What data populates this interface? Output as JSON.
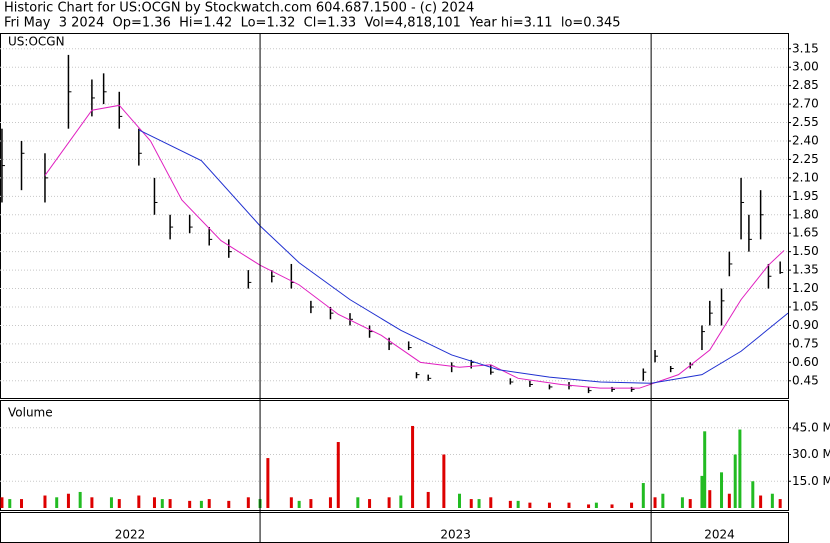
{
  "chart_data": [
    {
      "type": "ohlc",
      "title": "Historic Chart for US:OCGN by Stockwatch.com 604.687.1500 - (c) 2024",
      "subtitle": "Fri May  3 2024  Op=1.36  Hi=1.42  Lo=1.32  Cl=1.33  Vol=4,818,101  Year hi=3.11  lo=0.345",
      "label": "US:OCGN",
      "color": "#000000",
      "xlim": [
        2022.335,
        2024.35
      ],
      "ylim": [
        0.31,
        3.27
      ],
      "yticks": [
        0.45,
        {
          "value": 0.6,
          "label": "0.60"
        },
        0.75,
        {
          "value": 0.9,
          "label": "0.90"
        },
        1.05,
        {
          "value": 1.2,
          "label": "1.20"
        },
        1.35,
        {
          "value": 1.5,
          "label": "1.50"
        },
        1.65,
        {
          "value": 1.8,
          "label": "1.80"
        },
        1.95,
        {
          "value": 2.1,
          "label": "2.10"
        },
        2.25,
        {
          "value": 2.4,
          "label": "2.40"
        },
        2.55,
        {
          "value": 2.7,
          "label": "2.70"
        },
        2.85,
        {
          "value": 3.0,
          "label": "3.00"
        },
        3.15
      ],
      "grid": true,
      "x": [
        2022.34,
        2022.39,
        2022.45,
        2022.51,
        2022.57,
        2022.6,
        2022.64,
        2022.69,
        2022.73,
        2022.77,
        2022.82,
        2022.87,
        2022.92,
        2022.97,
        2023.03,
        2023.08,
        2023.13,
        2023.18,
        2023.23,
        2023.28,
        2023.33,
        2023.38,
        2023.4,
        2023.43,
        2023.49,
        2023.54,
        2023.59,
        2023.64,
        2023.69,
        2023.74,
        2023.79,
        2023.84,
        2023.9,
        2023.95,
        2023.98,
        2024.01,
        2024.05,
        2024.1,
        2024.13,
        2024.15,
        2024.18,
        2024.2,
        2024.23,
        2024.25,
        2024.28,
        2024.3,
        2024.33
      ],
      "high": [
        2.5,
        2.4,
        2.3,
        3.1,
        2.9,
        2.95,
        2.8,
        2.5,
        2.1,
        1.8,
        1.8,
        1.7,
        1.6,
        1.35,
        1.35,
        1.4,
        1.1,
        1.05,
        1.0,
        0.9,
        0.8,
        0.77,
        0.52,
        0.5,
        0.6,
        0.62,
        0.58,
        0.47,
        0.45,
        0.42,
        0.44,
        0.4,
        0.4,
        0.4,
        0.55,
        0.7,
        0.57,
        0.6,
        0.9,
        1.1,
        1.2,
        1.5,
        2.1,
        1.8,
        2.0,
        1.4,
        1.42
      ],
      "low": [
        1.9,
        2.0,
        1.9,
        2.5,
        2.6,
        2.7,
        2.5,
        2.2,
        1.8,
        1.6,
        1.65,
        1.55,
        1.45,
        1.2,
        1.25,
        1.2,
        1.0,
        0.95,
        0.9,
        0.8,
        0.7,
        0.7,
        0.47,
        0.45,
        0.52,
        0.55,
        0.5,
        0.42,
        0.4,
        0.38,
        0.38,
        0.35,
        0.36,
        0.36,
        0.45,
        0.6,
        0.52,
        0.55,
        0.7,
        0.9,
        0.9,
        1.3,
        1.6,
        1.5,
        1.6,
        1.2,
        1.32
      ],
      "close": [
        2.2,
        2.3,
        2.1,
        2.8,
        2.75,
        2.8,
        2.6,
        2.3,
        1.9,
        1.7,
        1.7,
        1.6,
        1.5,
        1.25,
        1.3,
        1.25,
        1.05,
        1.0,
        0.95,
        0.85,
        0.75,
        0.72,
        0.5,
        0.47,
        0.57,
        0.6,
        0.52,
        0.44,
        0.42,
        0.4,
        0.41,
        0.37,
        0.38,
        0.38,
        0.52,
        0.65,
        0.55,
        0.58,
        0.85,
        1.0,
        1.1,
        1.4,
        1.9,
        1.6,
        1.8,
        1.3,
        1.33
      ],
      "overlays": [
        {
          "color": "#e020c0",
          "x": [
            2022.45,
            2022.57,
            2022.64,
            2022.72,
            2022.8,
            2022.9,
            2023.0,
            2023.1,
            2023.2,
            2023.31,
            2023.41,
            2023.51,
            2023.59,
            2023.66,
            2023.77,
            2023.87,
            2023.97,
            2024.07,
            2024.15,
            2024.23,
            2024.3,
            2024.34
          ],
          "values": [
            2.12,
            2.65,
            2.69,
            2.4,
            1.92,
            1.59,
            1.39,
            1.23,
            0.99,
            0.82,
            0.6,
            0.56,
            0.58,
            0.47,
            0.42,
            0.39,
            0.39,
            0.5,
            0.7,
            1.11,
            1.39,
            1.51
          ]
        },
        {
          "color": "#2030d0",
          "x": [
            2022.69,
            2022.85,
            2023.0,
            2023.1,
            2023.23,
            2023.36,
            2023.49,
            2023.61,
            2023.74,
            2023.87,
            2024.0,
            2024.13,
            2024.23,
            2024.35
          ],
          "values": [
            2.49,
            2.24,
            1.71,
            1.41,
            1.11,
            0.86,
            0.66,
            0.54,
            0.48,
            0.44,
            0.43,
            0.5,
            0.69,
            1.0
          ]
        }
      ]
    },
    {
      "type": "volume",
      "label": "Volume",
      "xlim": [
        2022.335,
        2024.35
      ],
      "ylim": [
        0,
        60
      ],
      "yticks": [
        {
          "value": 15,
          "label": "15.0 M"
        },
        {
          "value": 30,
          "label": "30.0 M"
        },
        {
          "value": 45,
          "label": "45.0 M"
        }
      ],
      "xticks": [
        2023,
        2024
      ],
      "year_labels": [
        "2022",
        "2023",
        "2024"
      ],
      "series": [
        {
          "color": "#dd0000",
          "x": [
            2022.34,
            2022.39,
            2022.45,
            2022.51,
            2022.57,
            2022.64,
            2022.69,
            2022.73,
            2022.77,
            2022.82,
            2022.87,
            2022.92,
            2022.97,
            2023.02,
            2023.08,
            2023.13,
            2023.18,
            2023.2,
            2023.28,
            2023.33,
            2023.39,
            2023.43,
            2023.47,
            2023.54,
            2023.59,
            2023.64,
            2023.69,
            2023.74,
            2023.79,
            2023.84,
            2023.9,
            2023.95,
            2024.01,
            2024.1,
            2024.15,
            2024.2,
            2024.28,
            2024.33
          ],
          "values": [
            6,
            5,
            7,
            8,
            6,
            5,
            7,
            6,
            5,
            4,
            5,
            4,
            6,
            28,
            6,
            5,
            6,
            37,
            5,
            6,
            46,
            9,
            30,
            5,
            6,
            4,
            3,
            3,
            3,
            2,
            2,
            3,
            6,
            5,
            10,
            8,
            7,
            5
          ]
        },
        {
          "color": "#22bb22",
          "x": [
            2022.36,
            2022.48,
            2022.54,
            2022.62,
            2022.75,
            2022.85,
            2023.0,
            2023.1,
            2023.25,
            2023.36,
            2023.51,
            2023.56,
            2023.66,
            2023.86,
            2023.98,
            2024.03,
            2024.08,
            2024.13,
            2024.137,
            2024.18,
            2024.215,
            2024.227,
            2024.26,
            2024.31
          ],
          "values": [
            5,
            6,
            9,
            6,
            5,
            4,
            5,
            4,
            6,
            7,
            8,
            5,
            4,
            3,
            14,
            8,
            6,
            18,
            43,
            20,
            30,
            44,
            15,
            8
          ]
        }
      ]
    }
  ]
}
